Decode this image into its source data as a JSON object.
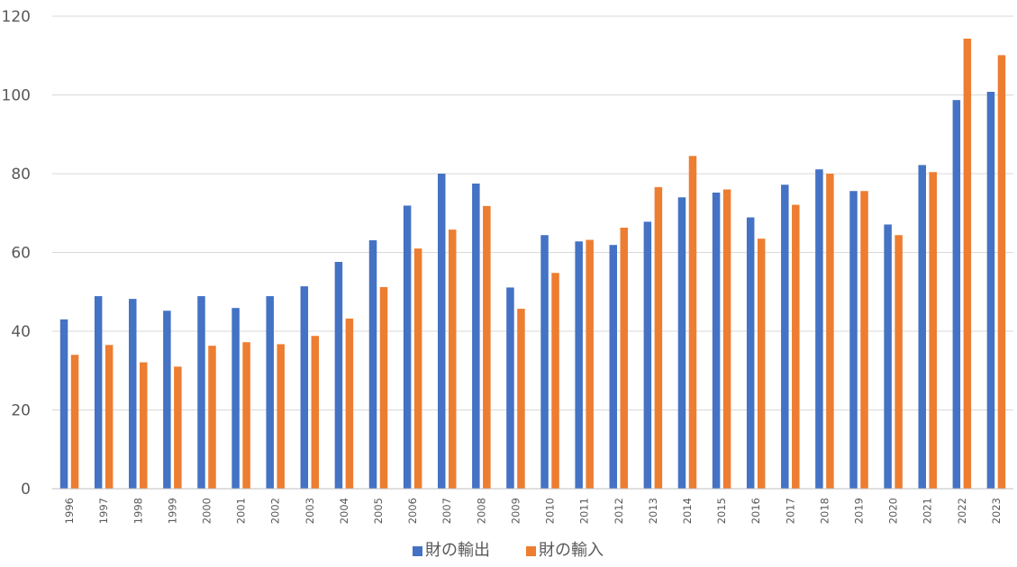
{
  "chart_data": {
    "type": "bar",
    "categories": [
      "1996",
      "1997",
      "1998",
      "1999",
      "2000",
      "2001",
      "2002",
      "2003",
      "2004",
      "2005",
      "2006",
      "2007",
      "2008",
      "2009",
      "2010",
      "2011",
      "2012",
      "2013",
      "2014",
      "2015",
      "2016",
      "2017",
      "2018",
      "2019",
      "2020",
      "2021",
      "2022",
      "2023"
    ],
    "series": [
      {
        "name": "財の輸出",
        "color": "#4472C4",
        "values": [
          43.0,
          48.9,
          48.2,
          45.2,
          48.9,
          45.9,
          48.9,
          51.4,
          57.6,
          63.1,
          71.9,
          80.0,
          77.5,
          51.1,
          64.4,
          62.8,
          61.9,
          67.8,
          74.0,
          75.2,
          68.9,
          77.2,
          81.1,
          75.6,
          67.1,
          82.2,
          98.7,
          100.8
        ],
        "show_in_legend": true
      },
      {
        "name": "財の輸入",
        "color": "#ED7D31",
        "values": [
          34.0,
          36.5,
          32.1,
          31.0,
          36.3,
          37.2,
          36.7,
          38.8,
          43.2,
          51.2,
          61.0,
          65.8,
          71.8,
          45.7,
          54.8,
          63.2,
          66.3,
          76.6,
          84.5,
          76.0,
          63.5,
          72.1,
          80.0,
          75.6,
          64.4,
          80.4,
          114.3,
          110.1
        ],
        "show_in_legend": true
      }
    ],
    "ylim": [
      0,
      120
    ],
    "yticks": [
      "0",
      "20",
      "40",
      "60",
      "80",
      "100",
      "120"
    ],
    "grid": true,
    "legend_position": "bottom-center",
    "title": "",
    "xlabel": "",
    "ylabel": ""
  }
}
